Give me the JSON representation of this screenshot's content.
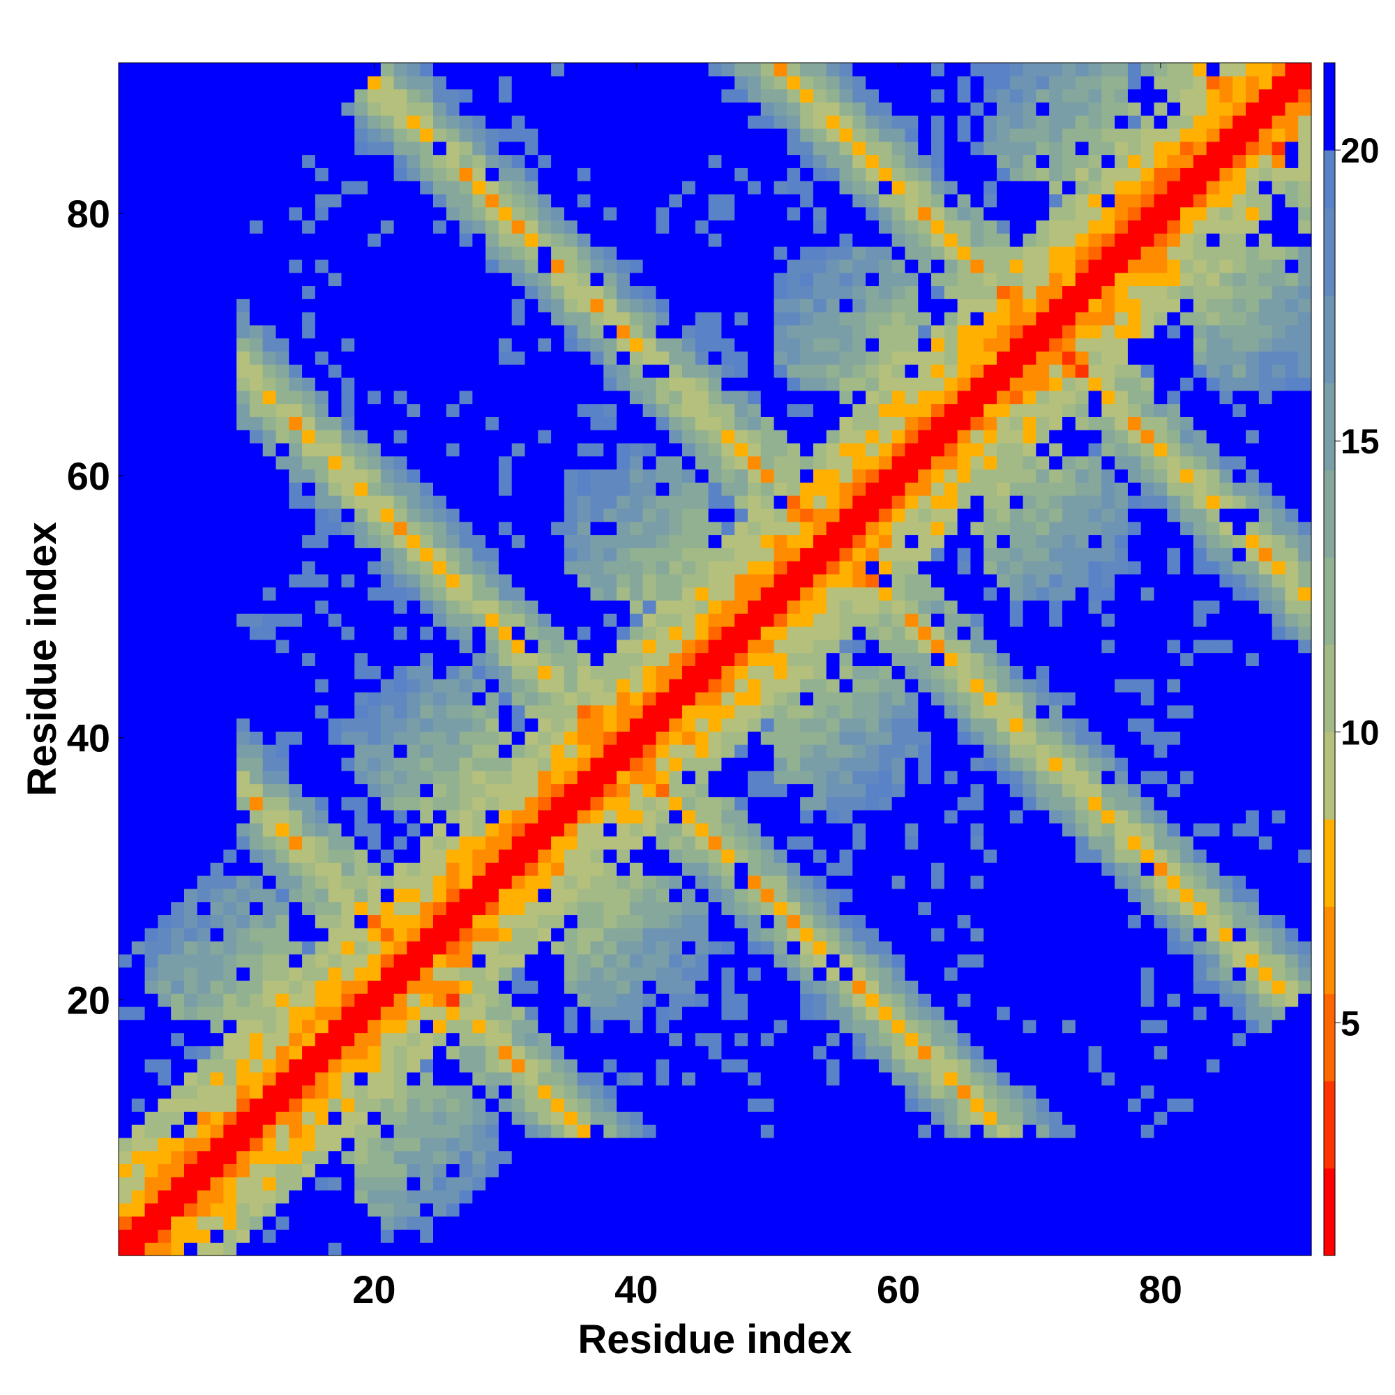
{
  "chart_data": {
    "type": "heatmap",
    "title": "",
    "xlabel": "Residue index",
    "ylabel": "Residue index",
    "n": 91,
    "xlim": [
      1,
      91
    ],
    "ylim": [
      1,
      91
    ],
    "xticks": [
      20,
      40,
      60,
      80
    ],
    "yticks": [
      20,
      40,
      60,
      80
    ],
    "colorbar": {
      "ticks": [
        5,
        10,
        15,
        20
      ],
      "range": [
        1,
        21.5
      ],
      "levels": [
        {
          "min": 1.0,
          "max": 2.5,
          "color": "#ff0000"
        },
        {
          "min": 2.5,
          "max": 4.0,
          "color": "#ff3300"
        },
        {
          "min": 4.0,
          "max": 5.5,
          "color": "#ff6600"
        },
        {
          "min": 5.5,
          "max": 7.0,
          "color": "#ff8c00"
        },
        {
          "min": 7.0,
          "max": 8.5,
          "color": "#ffb000"
        },
        {
          "min": 8.5,
          "max": 10.0,
          "color": "#b4c07c"
        },
        {
          "min": 10.0,
          "max": 11.5,
          "color": "#a3ba86"
        },
        {
          "min": 11.5,
          "max": 13.0,
          "color": "#92b191"
        },
        {
          "min": 13.0,
          "max": 14.5,
          "color": "#85a79c"
        },
        {
          "min": 14.5,
          "max": 16.0,
          "color": "#7a9ea8"
        },
        {
          "min": 16.0,
          "max": 17.5,
          "color": "#6e94b4"
        },
        {
          "min": 17.5,
          "max": 19.0,
          "color": "#6289bf"
        },
        {
          "min": 19.0,
          "max": 20.0,
          "color": "#5a82c7"
        },
        {
          "min": 20.0,
          "max": 21.5,
          "color": "#0000ff"
        }
      ]
    },
    "pattern": {
      "diagonal_value": 1.5,
      "helix_centers": [
        8,
        24,
        40,
        56,
        72,
        88
      ],
      "antidiagonal_offsets": [
        46,
        78,
        110,
        142,
        174
      ],
      "saturated_value": 21,
      "low_x_empty_until": 10
    }
  }
}
